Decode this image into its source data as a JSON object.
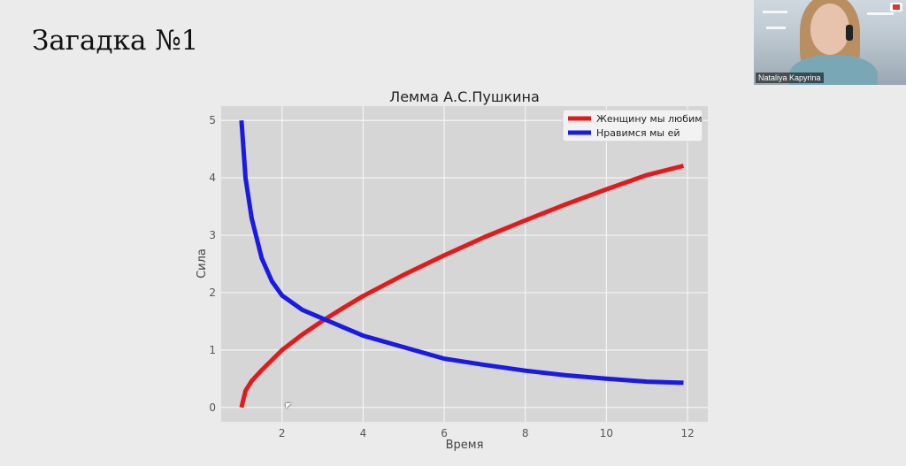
{
  "slide": {
    "title": "Загадка №1"
  },
  "participant": {
    "name": "Nataliya Kapyrina"
  },
  "chart_data": {
    "type": "line",
    "title": "Лемма А.С.Пушкина",
    "xlabel": "Время",
    "ylabel": "Сила",
    "xlim": [
      0.5,
      12.5
    ],
    "ylim": [
      -0.25,
      5.25
    ],
    "xticks": [
      2,
      4,
      6,
      8,
      10,
      12
    ],
    "yticks": [
      0,
      1,
      2,
      3,
      4,
      5
    ],
    "grid": true,
    "legend_position": "top-right",
    "series": [
      {
        "name": "Женщину мы любим",
        "color": "#e31a1c",
        "x": [
          1,
          1.1,
          1.25,
          1.5,
          2,
          2.5,
          3,
          3.5,
          4,
          5,
          6,
          7,
          8,
          9,
          10,
          11,
          11.9
        ],
        "y": [
          0,
          0.29,
          0.46,
          0.65,
          1.0,
          1.27,
          1.51,
          1.73,
          1.94,
          2.31,
          2.65,
          2.97,
          3.26,
          3.54,
          3.8,
          4.05,
          4.21
        ]
      },
      {
        "name": "Нравимся мы ей",
        "color": "#1a1ae6",
        "x": [
          1,
          1.1,
          1.25,
          1.5,
          1.75,
          2,
          2.5,
          3,
          3.5,
          4,
          5,
          6,
          7,
          8,
          9,
          10,
          11,
          11.9
        ],
        "y": [
          5.0,
          4.0,
          3.3,
          2.6,
          2.2,
          1.95,
          1.7,
          1.55,
          1.4,
          1.25,
          1.05,
          0.85,
          0.74,
          0.64,
          0.56,
          0.5,
          0.45,
          0.43
        ]
      }
    ]
  }
}
